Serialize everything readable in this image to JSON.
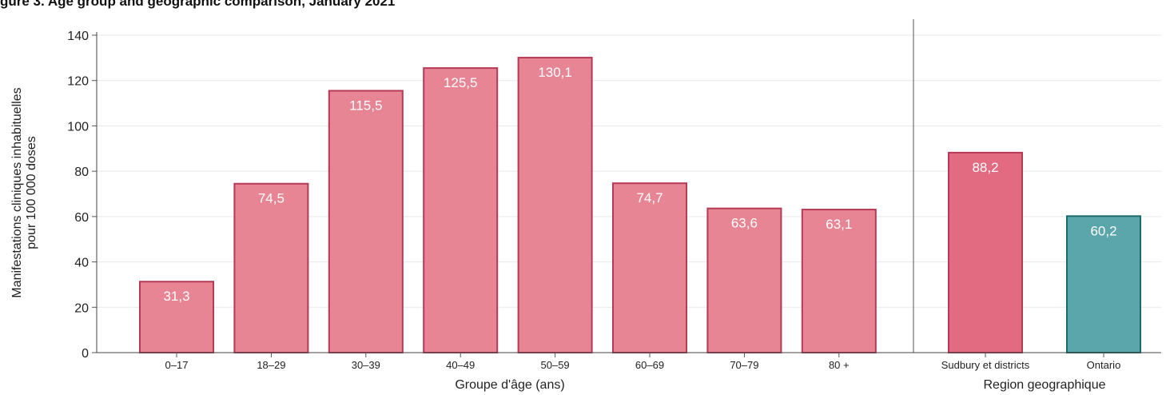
{
  "title": "gure 3. Age group and geographic comparison, January 2021",
  "chart_data": {
    "type": "bar",
    "ylabel_lines": [
      "Manifestations cliniques inhabituelles",
      "pour 100 000 doses"
    ],
    "ylim": [
      0,
      140
    ],
    "yticks": [
      0,
      20,
      40,
      60,
      80,
      100,
      120,
      140
    ],
    "grid": "horizontal",
    "panels": [
      {
        "xlabel": "Groupe d'âge (ans)",
        "categories": [
          "0–17",
          "18–29",
          "30–39",
          "40–49",
          "50–59",
          "60–69",
          "70–79",
          "80 +"
        ],
        "values": [
          31.3,
          74.5,
          115.5,
          125.5,
          130.1,
          74.7,
          63.6,
          63.1
        ],
        "value_labels": [
          "31,3",
          "74,5",
          "115,5",
          "125,5",
          "130,1",
          "74,7",
          "63,6",
          "63,1"
        ],
        "fill": "#e88595",
        "stroke": "#b53a55"
      },
      {
        "xlabel": "Region geographique",
        "categories": [
          "Sudbury et districts",
          "Ontario"
        ],
        "values": [
          88.2,
          60.2
        ],
        "value_labels": [
          "88,2",
          "60,2"
        ],
        "fills": [
          "#e26b82",
          "#5ba6aa"
        ],
        "strokes": [
          "#b53a55",
          "#1d6a6c"
        ]
      }
    ]
  }
}
